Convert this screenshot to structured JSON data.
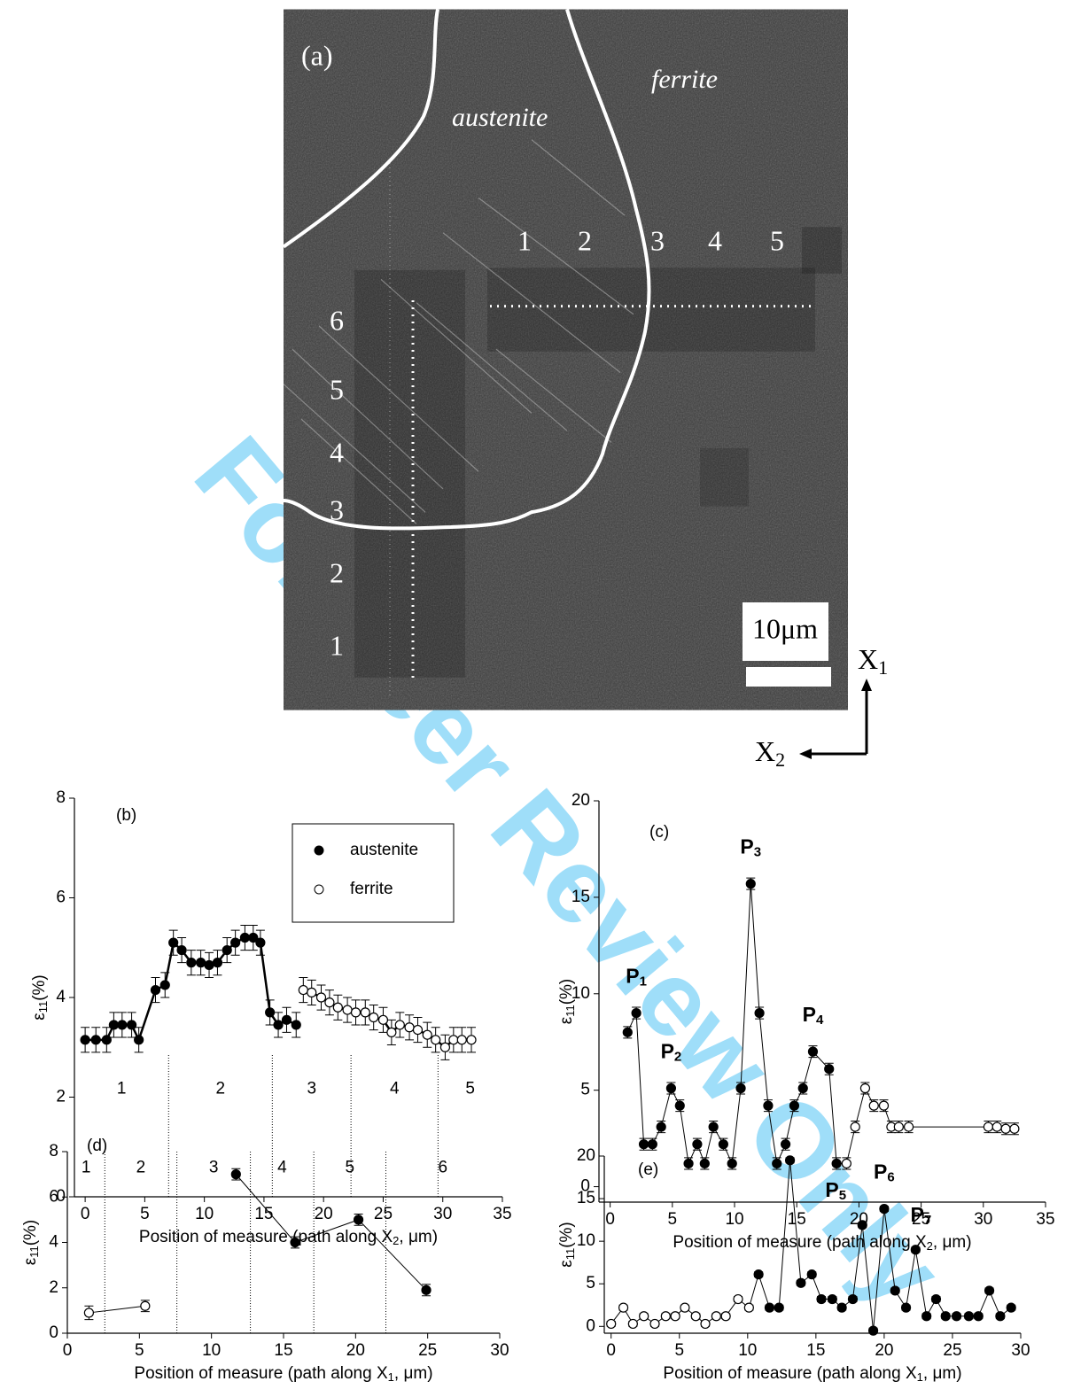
{
  "micrograph": {
    "panel_label": "(a)",
    "phases": [
      "austenite",
      "ferrite"
    ],
    "path_x2_labels": [
      "1",
      "2",
      "3",
      "4",
      "5"
    ],
    "path_x1_labels": [
      "1",
      "2",
      "3",
      "4",
      "5",
      "6"
    ],
    "scale_bar": "10μm",
    "axis_x1": [
      "X",
      "1"
    ],
    "axis_x2": [
      "X",
      "2"
    ]
  },
  "watermark": "For Peer Review Only",
  "chart_data": [
    {
      "type": "scatter",
      "panel_label": "(b)",
      "x_label": [
        "Position of measure (path along X",
        "2",
        ", μm)"
      ],
      "y_label": [
        "ε",
        "11",
        "(%)"
      ],
      "xlim": [
        -0.9,
        35
      ],
      "ylim": [
        0,
        8
      ],
      "xticks": [
        0,
        5,
        10,
        15,
        20,
        25,
        30,
        35
      ],
      "yticks": [
        0,
        2,
        4,
        6,
        8
      ],
      "connect": "series",
      "legend": true,
      "zone_boundaries": [
        7.0,
        15.7,
        22.3,
        29.6
      ],
      "zone_labels": [
        "1",
        "2",
        "3",
        "4",
        "5"
      ],
      "series": [
        {
          "name": "austenite",
          "marker": "filled",
          "color": "#000000",
          "x": [
            0,
            0.9,
            1.8,
            2.4,
            3.1,
            3.9,
            4.5,
            5.9,
            6.7,
            7.4,
            8.1,
            8.9,
            9.7,
            10.4,
            11.1,
            11.9,
            12.6,
            13.4,
            14.1,
            14.7,
            15.5,
            16.2,
            16.9,
            17.7
          ],
          "values": [
            3.15,
            3.15,
            3.15,
            3.45,
            3.45,
            3.45,
            3.15,
            4.15,
            4.25,
            5.1,
            4.95,
            4.7,
            4.7,
            4.65,
            4.7,
            4.95,
            5.1,
            5.2,
            5.2,
            5.1,
            3.7,
            3.45,
            3.55,
            3.45
          ],
          "errors": [
            0.25,
            0.25,
            0.25,
            0.25,
            0.25,
            0.25,
            0.25,
            0.25,
            0.25,
            0.25,
            0.25,
            0.25,
            0.25,
            0.25,
            0.25,
            0.25,
            0.25,
            0.25,
            0.25,
            0.25,
            0.25,
            0.25,
            0.25,
            0.25
          ]
        },
        {
          "name": "ferrite",
          "marker": "open",
          "color": "#000000",
          "x": [
            18.3,
            19.0,
            19.8,
            20.5,
            21.2,
            22.0,
            22.7,
            23.5,
            24.2,
            25.0,
            25.7,
            26.4,
            27.2,
            27.9,
            28.7,
            29.4,
            30.2,
            30.9,
            31.6,
            32.4
          ],
          "values": [
            4.15,
            4.1,
            4.0,
            3.9,
            3.8,
            3.75,
            3.7,
            3.7,
            3.6,
            3.55,
            3.3,
            3.45,
            3.4,
            3.35,
            3.25,
            3.15,
            3.0,
            3.15,
            3.15,
            3.15
          ],
          "errors": [
            0.25,
            0.25,
            0.25,
            0.25,
            0.25,
            0.25,
            0.25,
            0.25,
            0.25,
            0.25,
            0.25,
            0.25,
            0.25,
            0.25,
            0.25,
            0.25,
            0.25,
            0.25,
            0.25,
            0.25
          ]
        }
      ]
    },
    {
      "type": "scatter",
      "panel_label": "(c)",
      "x_label": [
        "Position of measure (path along X",
        "2",
        ", μm)"
      ],
      "y_label": [
        "ε",
        "11",
        "(%)"
      ],
      "xlim": [
        -0.9,
        35
      ],
      "ylim": [
        -0.8,
        20
      ],
      "xticks": [
        0,
        5,
        10,
        15,
        20,
        25,
        30,
        35
      ],
      "yticks": [
        0,
        5,
        10,
        15,
        20
      ],
      "connect": "all",
      "annotations": [
        {
          "parts": [
            "P",
            "1"
          ]
        },
        {
          "parts": [
            "P",
            "2"
          ]
        },
        {
          "parts": [
            "P",
            "3"
          ]
        },
        {
          "parts": [
            "P",
            "4"
          ]
        }
      ],
      "series": [
        {
          "marker": "filled",
          "color": "#000000",
          "x": [
            1.4,
            2.1,
            2.7,
            3.4,
            4.1,
            4.9,
            5.6,
            6.3,
            7.0,
            7.6,
            8.3,
            9.1,
            9.8,
            10.5,
            11.3,
            12.0,
            12.7,
            13.4,
            14.1,
            14.8,
            15.5,
            16.3,
            17.6,
            18.2
          ],
          "values": [
            8.0,
            9.0,
            2.2,
            2.2,
            3.1,
            5.1,
            4.2,
            1.2,
            2.2,
            1.2,
            3.1,
            2.2,
            1.2,
            5.1,
            15.7,
            9.0,
            4.2,
            1.2,
            2.2,
            4.2,
            5.1,
            7.0,
            6.1,
            1.2
          ],
          "errors": [
            0.3,
            0.3,
            0.3,
            0.3,
            0.3,
            0.3,
            0.3,
            0.3,
            0.3,
            0.3,
            0.3,
            0.3,
            0.3,
            0.3,
            0.3,
            0.3,
            0.3,
            0.3,
            0.3,
            0.3,
            0.3,
            0.3,
            0.3,
            0.3
          ]
        },
        {
          "marker": "open",
          "color": "#000000",
          "x": [
            19.0,
            19.7,
            20.5,
            21.2,
            22.0,
            22.6,
            23.2,
            24.0,
            30.4,
            31.1,
            31.8,
            32.5
          ],
          "values": [
            1.2,
            3.1,
            5.1,
            4.2,
            4.2,
            3.1,
            3.1,
            3.1,
            3.1,
            3.1,
            3.0,
            3.0
          ],
          "errors": [
            0.3,
            0.3,
            0.3,
            0.3,
            0.3,
            0.3,
            0.3,
            0.3,
            0.3,
            0.3,
            0.3,
            0.3
          ]
        }
      ]
    },
    {
      "type": "scatter",
      "panel_label": "(d)",
      "x_label": [
        "Position of measure (path along X",
        "1",
        ", μm)"
      ],
      "y_label": [
        "ε",
        "11",
        "(%)"
      ],
      "xlim": [
        0,
        30
      ],
      "ylim": [
        0,
        8
      ],
      "xticks": [
        0,
        5,
        10,
        15,
        20,
        25,
        30
      ],
      "yticks": [
        0,
        2,
        4,
        6,
        8
      ],
      "connect": "series",
      "zone_boundaries": [
        2.6,
        7.6,
        12.7,
        17.1,
        22.1
      ],
      "zone_labels": [
        "1",
        "2",
        "3",
        "4",
        "5",
        "6"
      ],
      "series": [
        {
          "marker": "open",
          "color": "#000000",
          "x": [
            1.5,
            5.4
          ],
          "values": [
            0.9,
            1.2
          ],
          "errors": [
            0.3,
            0.25
          ]
        },
        {
          "marker": "filled",
          "color": "#000000",
          "x": [
            11.7,
            15.8,
            20.2,
            24.9
          ],
          "values": [
            7.0,
            4.0,
            5.0,
            1.9
          ],
          "errors": [
            0.25,
            0.25,
            0.25,
            0.25
          ]
        }
      ]
    },
    {
      "type": "scatter",
      "panel_label": "(e)",
      "x_label": [
        "Position of measure (path along X",
        "1",
        ", μm)"
      ],
      "y_label": [
        "ε",
        "11",
        "(%)"
      ],
      "xlim": [
        -0.5,
        30
      ],
      "ylim": [
        -0.8,
        20
      ],
      "xticks": [
        0,
        5,
        10,
        15,
        20,
        25,
        30
      ],
      "yticks": [
        0,
        5,
        10,
        15,
        20
      ],
      "connect": "all",
      "annotations": [
        {
          "parts": [
            "P",
            "5"
          ]
        },
        {
          "parts": [
            "P",
            "6"
          ]
        },
        {
          "parts": [
            "P",
            "7"
          ]
        }
      ],
      "series": [
        {
          "marker": "open",
          "color": "#000000",
          "x": [
            0,
            0.9,
            1.6,
            2.4,
            3.2,
            4.0,
            4.7,
            5.4,
            6.2,
            6.9,
            7.7,
            8.4,
            9.3,
            10.1
          ],
          "values": [
            0.3,
            2.2,
            0.3,
            1.2,
            0.3,
            1.2,
            1.2,
            2.2,
            1.2,
            0.3,
            1.2,
            1.2,
            3.2,
            2.2
          ],
          "errors": [
            0.3,
            0.3,
            0.3,
            0.3,
            0.3,
            0.3,
            0.3,
            0.3,
            0.3,
            0.3,
            0.3,
            0.3,
            0.3,
            0.3
          ]
        },
        {
          "marker": "filled",
          "color": "#000000",
          "x": [
            10.8,
            11.6,
            12.3,
            13.1,
            13.9,
            14.7,
            15.4,
            16.2,
            16.9,
            17.7,
            18.4,
            19.2,
            20.0,
            20.8,
            21.6,
            22.3,
            23.1,
            23.8,
            24.5,
            25.3,
            26.2,
            26.9,
            27.7,
            28.5,
            29.3
          ],
          "values": [
            6.1,
            2.2,
            2.2,
            19.5,
            5.1,
            6.1,
            3.2,
            3.2,
            2.2,
            3.2,
            11.9,
            -0.5,
            13.8,
            4.2,
            2.2,
            9.0,
            1.2,
            3.2,
            1.2,
            1.2,
            1.2,
            1.2,
            4.2,
            1.2,
            2.2
          ],
          "errors": [
            0.3,
            0.3,
            0.3,
            0.3,
            0.3,
            0.3,
            0.3,
            0.3,
            0.3,
            0.3,
            0.3,
            0.3,
            0.3,
            0.3,
            0.3,
            0.3,
            0.3,
            0.3,
            0.3,
            0.3,
            0.3,
            0.3,
            0.3,
            0.3,
            0.3
          ]
        }
      ]
    }
  ]
}
